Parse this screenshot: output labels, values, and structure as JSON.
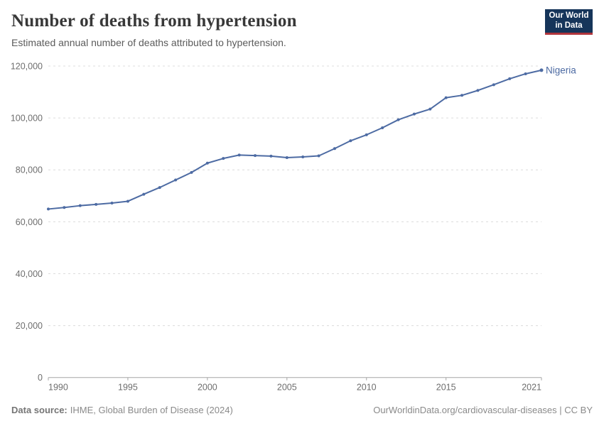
{
  "header": {
    "title": "Number of deaths from hypertension",
    "subtitle": "Estimated annual number of deaths attributed to hypertension.",
    "logo": {
      "line1": "Our World",
      "line2": "in Data"
    }
  },
  "chart_data": {
    "type": "line",
    "title": "Number of deaths from hypertension",
    "subtitle": "Estimated annual number of deaths attributed to hypertension.",
    "xlabel": "",
    "ylabel": "",
    "xlim": [
      1990,
      2021
    ],
    "ylim": [
      0,
      120000
    ],
    "x_ticks": [
      1990,
      1995,
      2000,
      2005,
      2010,
      2015,
      2021
    ],
    "y_ticks": [
      0,
      20000,
      40000,
      60000,
      80000,
      100000,
      120000
    ],
    "grid": "horizontal-dashed",
    "legend": "end-of-line-label",
    "series": [
      {
        "name": "Nigeria",
        "color": "#4d6ba3",
        "x": [
          1990,
          1991,
          1992,
          1993,
          1994,
          1995,
          1996,
          1997,
          1998,
          1999,
          2000,
          2001,
          2002,
          2003,
          2004,
          2005,
          2006,
          2007,
          2008,
          2009,
          2010,
          2011,
          2012,
          2013,
          2014,
          2015,
          2016,
          2017,
          2018,
          2019,
          2020,
          2021
        ],
        "values": [
          64900,
          65500,
          66200,
          66700,
          67200,
          67900,
          70600,
          73200,
          76100,
          79000,
          82600,
          84400,
          85700,
          85500,
          85300,
          84700,
          85000,
          85400,
          88200,
          91200,
          93500,
          96200,
          99300,
          101500,
          103400,
          107800,
          108700,
          110600,
          112800,
          115100,
          117000,
          118400
        ]
      }
    ]
  },
  "footer": {
    "source_label": "Data source:",
    "source_value": "IHME, Global Burden of Disease (2024)",
    "credit": "OurWorldinData.org/cardiovascular-diseases | CC BY"
  },
  "colors": {
    "series": "#4d6ba3",
    "logo_bg": "#16355a",
    "logo_accent": "#b0353c",
    "title_text": "#383838",
    "subtitle_text": "#5b5b5b",
    "axis_text": "#6e6e6e",
    "gridline": "#dcdcdc",
    "axis_line": "#a5a5a5",
    "footer_text": "#8a8a8a"
  }
}
